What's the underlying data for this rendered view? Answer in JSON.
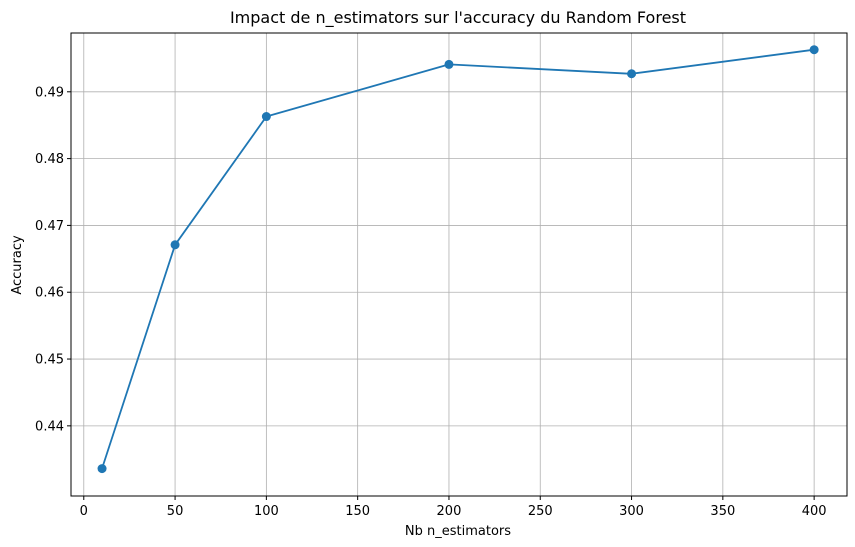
{
  "chart_data": {
    "type": "line",
    "title": "Impact de n_estimators sur l'accuracy du Random Forest",
    "xlabel": "Nb n_estimators",
    "ylabel": "Accuracy",
    "x": [
      10,
      50,
      100,
      200,
      300,
      400
    ],
    "series": [
      {
        "values": [
          0.4336,
          0.4671,
          0.4863,
          0.4941,
          0.4927,
          0.4963
        ],
        "color": "#1f77b4",
        "marker": "circle"
      }
    ],
    "xlim": [
      -7,
      418
    ],
    "ylim": [
      0.4295,
      0.4988
    ],
    "xticks": [
      0,
      50,
      100,
      150,
      200,
      250,
      300,
      350,
      400
    ],
    "yticks": [
      0.44,
      0.45,
      0.46,
      0.47,
      0.48,
      0.49
    ],
    "xtick_labels": [
      "0",
      "50",
      "100",
      "150",
      "200",
      "250",
      "300",
      "350",
      "400"
    ],
    "ytick_labels": [
      "0.44",
      "0.45",
      "0.46",
      "0.47",
      "0.48",
      "0.49"
    ],
    "grid": true,
    "grid_color": "#b0b0b0"
  }
}
